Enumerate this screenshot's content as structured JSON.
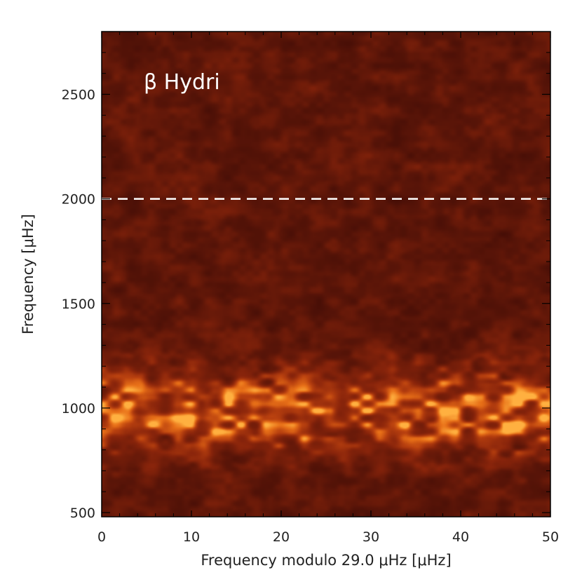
{
  "chart_data": {
    "type": "heatmap",
    "title": "β Hydri",
    "xlabel": "Frequency modulo 29.0 μHz [μHz]",
    "ylabel": "Frequency [μHz]",
    "xlim": [
      0,
      50
    ],
    "ylim": [
      480,
      2800
    ],
    "x_ticks": [
      0,
      10,
      20,
      30,
      40,
      50
    ],
    "y_ticks": [
      500,
      1000,
      1500,
      2000,
      2500
    ],
    "reference_line": {
      "y": 2000,
      "style": "dashed",
      "color": "#ffffff"
    },
    "colormap": [
      "#1a0000",
      "#3a0a05",
      "#5a1508",
      "#8a250b",
      "#b8400f",
      "#e87018",
      "#ffb040"
    ],
    "power_excess": {
      "center": 980,
      "range": [
        800,
        1200
      ]
    },
    "grid": false
  }
}
